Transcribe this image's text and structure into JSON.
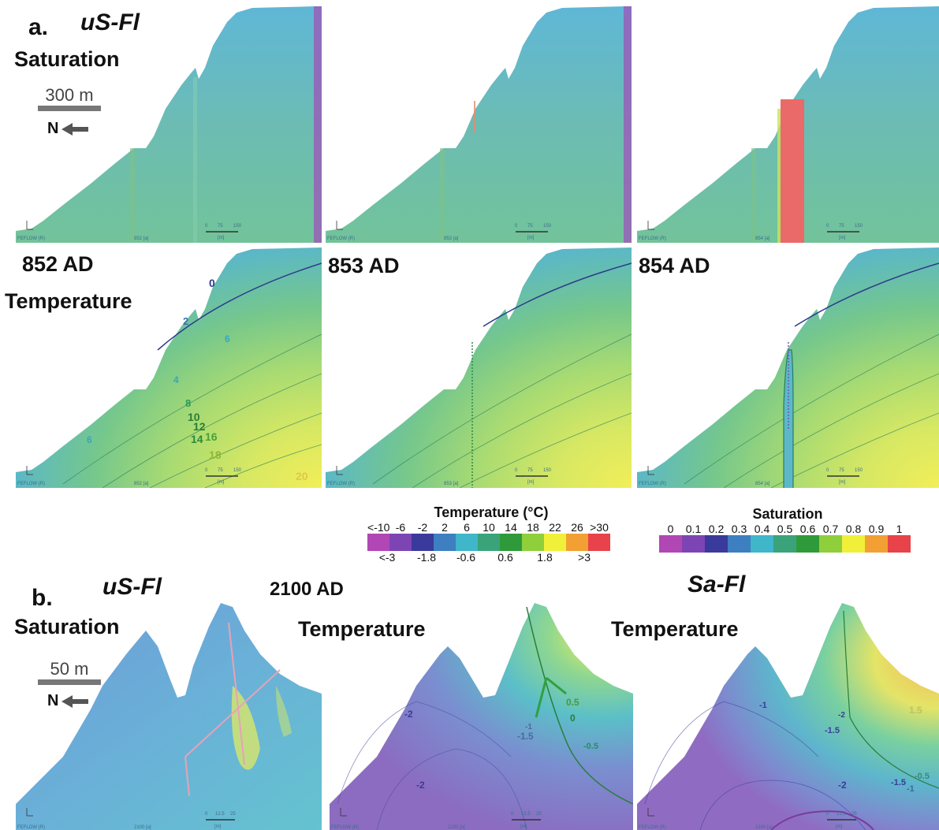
{
  "section_a": {
    "letter": "a.",
    "model": "uS-Fl",
    "saturation_label": "Saturation",
    "temperature_label": "Temperature",
    "scale_text": "300 m",
    "north_text": "N",
    "years": [
      "852 AD",
      "853 AD",
      "854 AD"
    ],
    "panel_years": [
      "852 [a]",
      "853 [a]",
      "854 [a]"
    ]
  },
  "section_b": {
    "letter": "b.",
    "model_left": "uS-Fl",
    "year": "2100 AD",
    "model_right": "Sa-Fl",
    "saturation_label": "Saturation",
    "temperature_label_mid": "Temperature",
    "temperature_label_right": "Temperature",
    "scale_text": "50 m",
    "north_text": "N",
    "panel_year": "2100 [a]"
  },
  "feflow_text": "FEFLOW (R)",
  "scalebar_a": {
    "t0": "0",
    "t1": "75",
    "t2": "150",
    "unit": "[m]"
  },
  "scalebar_b": {
    "t0": "0",
    "t1": "12.5",
    "t2": "25",
    "unit": "[m]"
  },
  "contours_a1": [
    "0",
    "2",
    "4",
    "6",
    "6",
    "8",
    "10",
    "12",
    "14",
    "16",
    "18",
    "20"
  ],
  "contours_b2": [
    "-2",
    "-1.5",
    "-1",
    "-0.5",
    "0",
    "0.5",
    "-2"
  ],
  "contours_b3": [
    "-1",
    "-1.5",
    "-2",
    "-1.5",
    "-1",
    "-0.5",
    "1.5",
    "-2"
  ],
  "temperature_legend": {
    "title": "Temperature (°C)",
    "top_ticks": [
      "<-10",
      "-6",
      "-2",
      "2",
      "6",
      "10",
      "14",
      "18",
      "22",
      "26",
      ">30"
    ],
    "bottom_ticks": [
      "<-3",
      "-1.8",
      "-0.6",
      "0.6",
      "1.8",
      ">3"
    ],
    "colors": [
      "#b146b5",
      "#7d45b3",
      "#3a3a9c",
      "#3d7fc1",
      "#3fb6c9",
      "#3aa37a",
      "#2f9a3a",
      "#8fcf3c",
      "#f0f03a",
      "#f2a033",
      "#e8424a"
    ]
  },
  "saturation_legend": {
    "title": "Saturation",
    "ticks": [
      "0",
      "0.1",
      "0.2",
      "0.3",
      "0.4",
      "0.5",
      "0.6",
      "0.7",
      "0.8",
      "0.9",
      "1"
    ],
    "colors": [
      "#b146b5",
      "#7d45b3",
      "#3a3a9c",
      "#3d7fc1",
      "#3fb6c9",
      "#3aa37a",
      "#2f9a3a",
      "#8fcf3c",
      "#f0f03a",
      "#f2a033",
      "#e8424a"
    ]
  }
}
